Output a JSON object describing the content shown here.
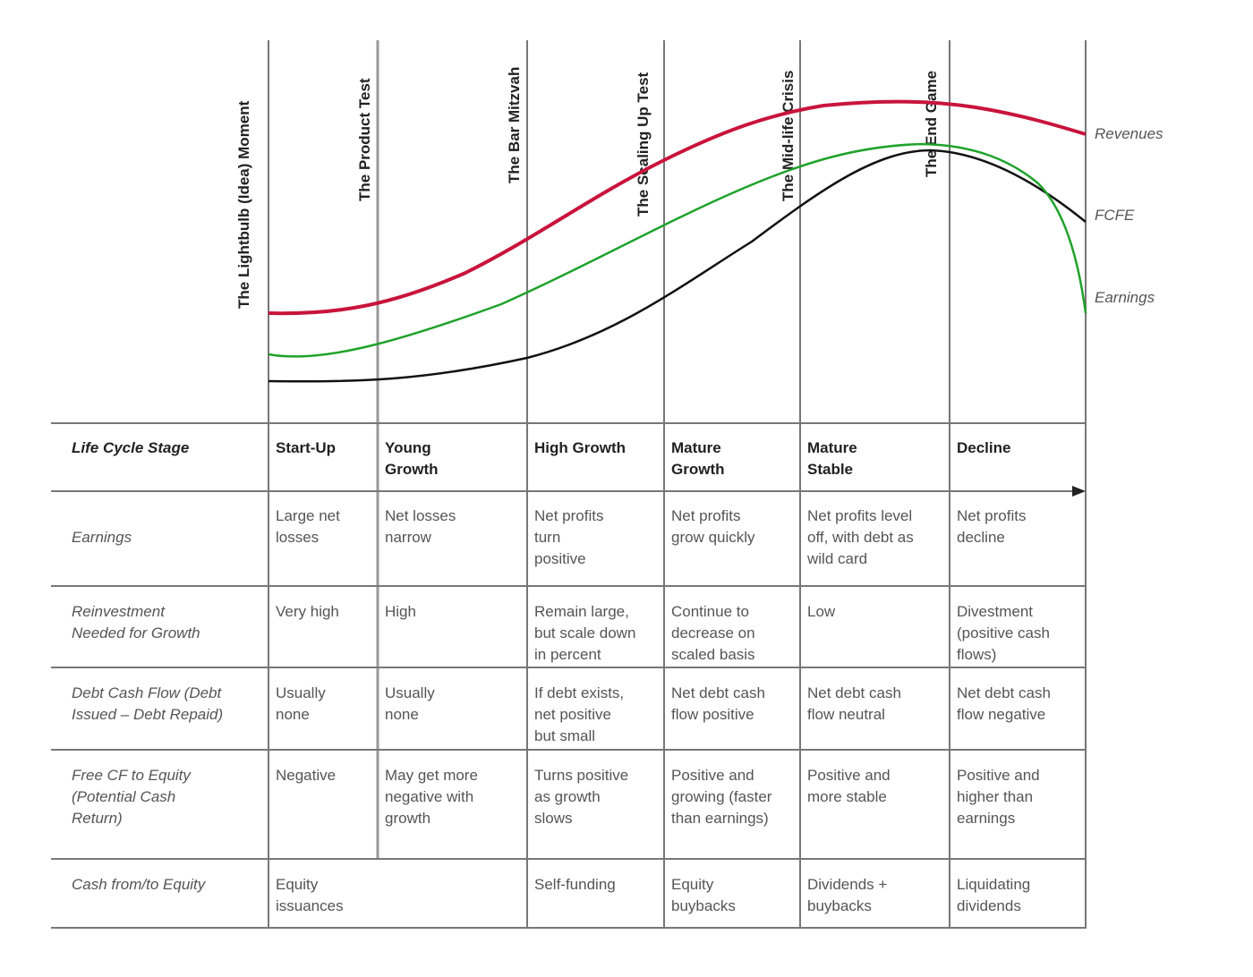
{
  "milestones": [
    "The Lightbulb (Idea) Moment",
    "The Product Test",
    "The Bar Mitzvah",
    "The Scaling Up Test",
    "The Mid-life Crisis",
    "The End Game"
  ],
  "curves": [
    {
      "name": "Revenues",
      "color": "#c8143c"
    },
    {
      "name": "FCFE",
      "color": "#111111"
    },
    {
      "name": "Earnings",
      "color": "#1fa22a"
    }
  ],
  "table": {
    "header_label": "Life Cycle Stage",
    "stages": [
      [
        "Start-Up"
      ],
      [
        "Young",
        "Growth"
      ],
      [
        "High Growth"
      ],
      [
        "Mature",
        "Growth"
      ],
      [
        "Mature",
        "Stable"
      ],
      [
        "Decline"
      ]
    ],
    "rows": [
      {
        "label": [
          "Earnings"
        ],
        "cells": [
          [
            "Large net",
            "losses"
          ],
          [
            "Net losses",
            "narrow"
          ],
          [
            "Net profits",
            "turn",
            "positive"
          ],
          [
            "Net profits",
            "grow quickly"
          ],
          [
            "Net profits level",
            "off, with debt as",
            "wild card"
          ],
          [
            "Net profits",
            "decline"
          ]
        ]
      },
      {
        "label": [
          "Reinvestment",
          "Needed for Growth"
        ],
        "cells": [
          [
            "Very high"
          ],
          [
            "High"
          ],
          [
            "Remain large,",
            "but scale down",
            "in percent"
          ],
          [
            "Continue to",
            "decrease on",
            "scaled basis"
          ],
          [
            "Low"
          ],
          [
            "Divestment",
            "(positive cash",
            "flows)"
          ]
        ]
      },
      {
        "label": [
          "Debt Cash Flow (Debt",
          "Issued – Debt Repaid)"
        ],
        "cells": [
          [
            "Usually",
            "none"
          ],
          [
            "Usually",
            "none"
          ],
          [
            "If debt exists,",
            "net positive",
            "but small"
          ],
          [
            "Net debt cash",
            "flow positive"
          ],
          [
            "Net debt cash",
            "flow neutral"
          ],
          [
            "Net debt cash",
            "flow negative"
          ]
        ]
      },
      {
        "label": [
          "Free CF to Equity",
          "(Potential Cash",
          "Return)"
        ],
        "cells": [
          [
            "Negative"
          ],
          [
            "May get more",
            "negative with",
            "growth"
          ],
          [
            "Turns positive",
            "as growth",
            "slows"
          ],
          [
            "Positive and",
            "growing (faster",
            "than earnings)"
          ],
          [
            "Positive and",
            "more stable"
          ],
          [
            "Positive and",
            "higher than",
            "earnings"
          ]
        ]
      },
      {
        "label": [
          "Cash from/to Equity"
        ],
        "cells": [
          [
            "Equity",
            "issuances"
          ],
          [],
          [
            "Self-funding"
          ],
          [
            "Equity",
            "buybacks"
          ],
          [
            "Dividends +",
            "buybacks"
          ],
          [
            "Liquidating",
            "dividends"
          ]
        ]
      }
    ]
  }
}
